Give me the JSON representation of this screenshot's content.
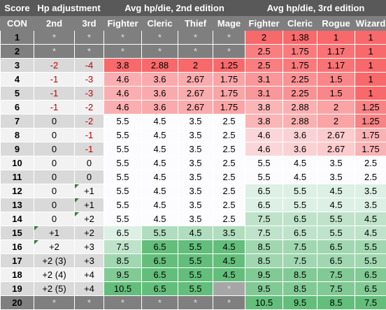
{
  "headers": {
    "score": "Score",
    "hp_adjustment": "Hp adjustment",
    "avg2": "Avg hp/die, 2nd edition",
    "avg3": "Avg hp/die, 3rd edition"
  },
  "subheaders": [
    "CON",
    "2nd",
    "3rd",
    "Fighter",
    "Cleric",
    "Thief",
    "Mage",
    "Fighter",
    "Cleric",
    "Rogue",
    "Wizard"
  ],
  "rows": [
    {
      "score": "1",
      "adj2": "*",
      "adj3": "*",
      "e2": [
        "*",
        "*",
        "*",
        "*"
      ],
      "e3": [
        "2",
        "1.38",
        "1",
        "1"
      ]
    },
    {
      "score": "2",
      "adj2": "*",
      "adj3": "*",
      "e2": [
        "*",
        "*",
        "*",
        "*"
      ],
      "e3": [
        "2.5",
        "1.75",
        "1.17",
        "1"
      ]
    },
    {
      "score": "3",
      "adj2": "-2",
      "adj3": "-4",
      "e2": [
        "3.8",
        "2.88",
        "2",
        "1.25"
      ],
      "e3": [
        "2.5",
        "1.75",
        "1.17",
        "1"
      ]
    },
    {
      "score": "4",
      "adj2": "-1",
      "adj3": "-3",
      "e2": [
        "4.6",
        "3.6",
        "2.67",
        "1.75"
      ],
      "e3": [
        "3.1",
        "2.25",
        "1.5",
        "1"
      ]
    },
    {
      "score": "5",
      "adj2": "-1",
      "adj3": "-3",
      "e2": [
        "4.6",
        "3.6",
        "2.67",
        "1.75"
      ],
      "e3": [
        "3.1",
        "2.25",
        "1.5",
        "1"
      ]
    },
    {
      "score": "6",
      "adj2": "-1",
      "adj3": "-2",
      "e2": [
        "4.6",
        "3.6",
        "2.67",
        "1.75"
      ],
      "e3": [
        "3.8",
        "2.88",
        "2",
        "1.25"
      ]
    },
    {
      "score": "7",
      "adj2": "0",
      "adj3": "-2",
      "e2": [
        "5.5",
        "4.5",
        "3.5",
        "2.5"
      ],
      "e3": [
        "3.8",
        "2.88",
        "2",
        "1.25"
      ]
    },
    {
      "score": "8",
      "adj2": "0",
      "adj3": "-1",
      "e2": [
        "5.5",
        "4.5",
        "3.5",
        "2.5"
      ],
      "e3": [
        "4.6",
        "3.6",
        "2.67",
        "1.75"
      ]
    },
    {
      "score": "9",
      "adj2": "0",
      "adj3": "-1",
      "e2": [
        "5.5",
        "4.5",
        "3.5",
        "2.5"
      ],
      "e3": [
        "4.6",
        "3.6",
        "2.67",
        "1.75"
      ]
    },
    {
      "score": "10",
      "adj2": "0",
      "adj3": "0",
      "e2": [
        "5.5",
        "4.5",
        "3.5",
        "2.5"
      ],
      "e3": [
        "5.5",
        "4.5",
        "3.5",
        "2.5"
      ]
    },
    {
      "score": "11",
      "adj2": "0",
      "adj3": "0",
      "e2": [
        "5.5",
        "4.5",
        "3.5",
        "2.5"
      ],
      "e3": [
        "5.5",
        "4.5",
        "3.5",
        "2.5"
      ]
    },
    {
      "score": "12",
      "adj2": "0",
      "adj3": "+1",
      "e2": [
        "5.5",
        "4.5",
        "3.5",
        "2.5"
      ],
      "e3": [
        "6.5",
        "5.5",
        "4.5",
        "3.5"
      ]
    },
    {
      "score": "13",
      "adj2": "0",
      "adj3": "+1",
      "e2": [
        "5.5",
        "4.5",
        "3.5",
        "2.5"
      ],
      "e3": [
        "6.5",
        "5.5",
        "4.5",
        "3.5"
      ]
    },
    {
      "score": "14",
      "adj2": "0",
      "adj3": "+2",
      "e2": [
        "5.5",
        "4.5",
        "3.5",
        "2.5"
      ],
      "e3": [
        "7.5",
        "6.5",
        "5.5",
        "4.5"
      ]
    },
    {
      "score": "15",
      "adj2": "+1",
      "adj3": "+2",
      "e2": [
        "6.5",
        "5.5",
        "4.5",
        "3.5"
      ],
      "e3": [
        "7.5",
        "6.5",
        "5.5",
        "4.5"
      ]
    },
    {
      "score": "16",
      "adj2": "+2",
      "adj3": "+3",
      "e2": [
        "7.5",
        "6.5",
        "5.5",
        "4.5"
      ],
      "e3": [
        "8.5",
        "7.5",
        "6.5",
        "5.5"
      ]
    },
    {
      "score": "17",
      "adj2": "+2 (3)",
      "adj3": "+3",
      "e2": [
        "8.5",
        "6.5",
        "5.5",
        "4.5"
      ],
      "e3": [
        "8.5",
        "7.5",
        "6.5",
        "5.5"
      ]
    },
    {
      "score": "18",
      "adj2": "+2 (4)",
      "adj3": "+4",
      "e2": [
        "9.5",
        "6.5",
        "5.5",
        "4.5"
      ],
      "e3": [
        "9.5",
        "8.5",
        "7.5",
        "6.5"
      ]
    },
    {
      "score": "19",
      "adj2": "+2 (5)",
      "adj3": "+4",
      "e2": [
        "10.5",
        "6.5",
        "5.5",
        "*"
      ],
      "e3": [
        "9.5",
        "8.5",
        "7.5",
        "6.5"
      ]
    },
    {
      "score": "20",
      "adj2": "*",
      "adj3": "*",
      "e2": [
        "*",
        "*",
        "*",
        "*"
      ],
      "e3": [
        "10.5",
        "9.5",
        "8.5",
        "7.5"
      ]
    }
  ]
}
